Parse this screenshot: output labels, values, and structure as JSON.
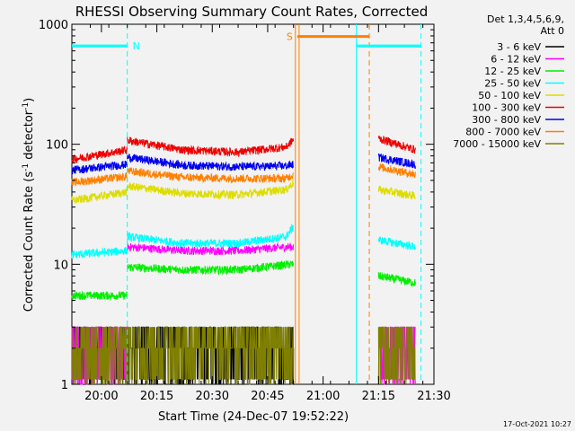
{
  "chart_data": {
    "type": "line",
    "title": "RHESSI Observing Summary Count Rates, Corrected",
    "xlabel": "Start Time (24-Dec-07 19:52:22)",
    "ylabel_main": "Corrected Count Rate (s",
    "ylabel_sup1": "-1",
    "ylabel_mid": " detector",
    "ylabel_sup2": "-1",
    "ylabel_end": ")",
    "ylog": true,
    "ylim": [
      1,
      1000
    ],
    "x_range_min": [
      0,
      98
    ],
    "x_ticks": [
      {
        "label": "20:00",
        "t": 8
      },
      {
        "label": "20:15",
        "t": 23
      },
      {
        "label": "20:30",
        "t": 38
      },
      {
        "label": "20:45",
        "t": 53
      },
      {
        "label": "21:00",
        "t": 68
      },
      {
        "label": "21:15",
        "t": 83
      },
      {
        "label": "21:30",
        "t": 98
      }
    ],
    "y_ticks": [
      {
        "label": "1",
        "v": 1
      },
      {
        "label": "10",
        "v": 10
      },
      {
        "label": "100",
        "v": 100
      },
      {
        "label": "1000",
        "v": 1000
      }
    ],
    "legend_header": [
      "Det 1,3,4,5,6,9,",
      "Att 0"
    ],
    "legend_placement": "right",
    "series": [
      {
        "name": "3 - 6 keV",
        "color": "#000000",
        "segments": [
          {
            "t": [
              0,
              60
            ],
            "pts": [
              [
                0,
                1.1
              ],
              [
                60,
                1.1
              ]
            ]
          }
        ]
      },
      {
        "name": "6 - 12 keV",
        "color": "#ff00ff",
        "segments": [
          {
            "t": [
              0,
              15
            ],
            "pts": [
              [
                0,
                1.6
              ],
              [
                15,
                1.6
              ]
            ]
          },
          {
            "t": [
              15,
              60
            ],
            "pts": [
              [
                15,
                14
              ],
              [
                30,
                13
              ],
              [
                45,
                13
              ],
              [
                59,
                14
              ]
            ]
          },
          {
            "t": [
              83,
              93
            ],
            "pts": [
              [
                83,
                2.2
              ],
              [
                93,
                2
              ]
            ]
          }
        ]
      },
      {
        "name": "12 - 25 keV",
        "color": "#00ee00",
        "segments": [
          {
            "t": [
              0,
              15
            ],
            "pts": [
              [
                0,
                5.5
              ],
              [
                15,
                5.5
              ]
            ]
          },
          {
            "t": [
              15,
              60
            ],
            "pts": [
              [
                15,
                9.5
              ],
              [
                30,
                9
              ],
              [
                45,
                9
              ],
              [
                59,
                10
              ]
            ]
          },
          {
            "t": [
              83,
              93
            ],
            "pts": [
              [
                83,
                8
              ],
              [
                93,
                7
              ]
            ]
          }
        ]
      },
      {
        "name": "25 - 50 keV",
        "color": "#00ffff",
        "segments": [
          {
            "t": [
              0,
              15
            ],
            "pts": [
              [
                0,
                12
              ],
              [
                15,
                13
              ]
            ]
          },
          {
            "t": [
              15,
              60
            ],
            "pts": [
              [
                15,
                17
              ],
              [
                30,
                15
              ],
              [
                45,
                15
              ],
              [
                58,
                17
              ],
              [
                60,
                21
              ]
            ]
          },
          {
            "t": [
              83,
              93
            ],
            "pts": [
              [
                83,
                16
              ],
              [
                93,
                14
              ]
            ]
          }
        ]
      },
      {
        "name": "50 - 100 keV",
        "color": "#dddd00",
        "segments": [
          {
            "t": [
              0,
              15
            ],
            "pts": [
              [
                0,
                34
              ],
              [
                15,
                40
              ]
            ]
          },
          {
            "t": [
              15,
              60
            ],
            "pts": [
              [
                15,
                45
              ],
              [
                30,
                39
              ],
              [
                45,
                38
              ],
              [
                58,
                42
              ],
              [
                60,
                48
              ]
            ]
          },
          {
            "t": [
              83,
              93
            ],
            "pts": [
              [
                83,
                42
              ],
              [
                93,
                37
              ]
            ]
          }
        ]
      },
      {
        "name": "100 - 300 keV",
        "color": "#ee0000",
        "segments": [
          {
            "t": [
              0,
              15
            ],
            "pts": [
              [
                0,
                75
              ],
              [
                15,
                90
              ]
            ]
          },
          {
            "t": [
              15,
              60
            ],
            "pts": [
              [
                15,
                108
              ],
              [
                30,
                90
              ],
              [
                45,
                86
              ],
              [
                58,
                95
              ],
              [
                60,
                110
              ]
            ]
          },
          {
            "t": [
              83,
              93
            ],
            "pts": [
              [
                83,
                112
              ],
              [
                93,
                90
              ]
            ]
          }
        ]
      },
      {
        "name": "300 - 800 keV",
        "color": "#0000ee",
        "segments": [
          {
            "t": [
              0,
              15
            ],
            "pts": [
              [
                0,
                61
              ],
              [
                15,
                68
              ]
            ]
          },
          {
            "t": [
              15,
              60
            ],
            "pts": [
              [
                15,
                78
              ],
              [
                30,
                67
              ],
              [
                45,
                65
              ],
              [
                58,
                66
              ],
              [
                60,
                68
              ]
            ]
          },
          {
            "t": [
              83,
              93
            ],
            "pts": [
              [
                83,
                78
              ],
              [
                93,
                68
              ]
            ]
          }
        ]
      },
      {
        "name": "800 - 7000 keV",
        "color": "#ff8000",
        "segments": [
          {
            "t": [
              0,
              15
            ],
            "pts": [
              [
                0,
                48
              ],
              [
                15,
                54
              ]
            ]
          },
          {
            "t": [
              15,
              60
            ],
            "pts": [
              [
                15,
                60
              ],
              [
                30,
                53
              ],
              [
                45,
                52
              ],
              [
                58,
                52
              ],
              [
                60,
                56
              ]
            ]
          },
          {
            "t": [
              83,
              93
            ],
            "pts": [
              [
                83,
                65
              ],
              [
                93,
                56
              ]
            ]
          }
        ]
      },
      {
        "name": "7000 - 15000 keV",
        "color": "#808000",
        "segments": [
          {
            "t": [
              0,
              60
            ],
            "pts": [
              [
                0,
                1.7
              ],
              [
                60,
                1.7
              ]
            ]
          },
          {
            "t": [
              83,
              93
            ],
            "pts": [
              [
                83,
                1.6
              ],
              [
                93,
                1.6
              ]
            ]
          }
        ]
      }
    ],
    "state_bars": [
      {
        "label": "N",
        "color": "#00ffff",
        "t": [
          0,
          15
        ],
        "v": 660
      },
      {
        "label": "S",
        "color": "#ff8000",
        "t": [
          61,
          80.5
        ],
        "v": 790
      },
      {
        "label": "",
        "color": "#00ffff",
        "t": [
          77,
          94.5
        ],
        "v": 660
      }
    ],
    "markers": [
      {
        "t": 15,
        "color": "#00ffff",
        "style": "dashed"
      },
      {
        "t": 60.5,
        "color": "#ff8000",
        "style": "solid"
      },
      {
        "t": 61.5,
        "color": "#ff8000",
        "style": "solid"
      },
      {
        "t": 77,
        "color": "#00ffff",
        "style": "solid"
      },
      {
        "t": 80.5,
        "color": "#ff8000",
        "style": "dashed"
      },
      {
        "t": 94.5,
        "color": "#00ffff",
        "style": "dashed"
      }
    ],
    "gaps": [
      [
        60,
        83
      ]
    ]
  },
  "footer_timestamp": "17-Oct-2021 10:27"
}
